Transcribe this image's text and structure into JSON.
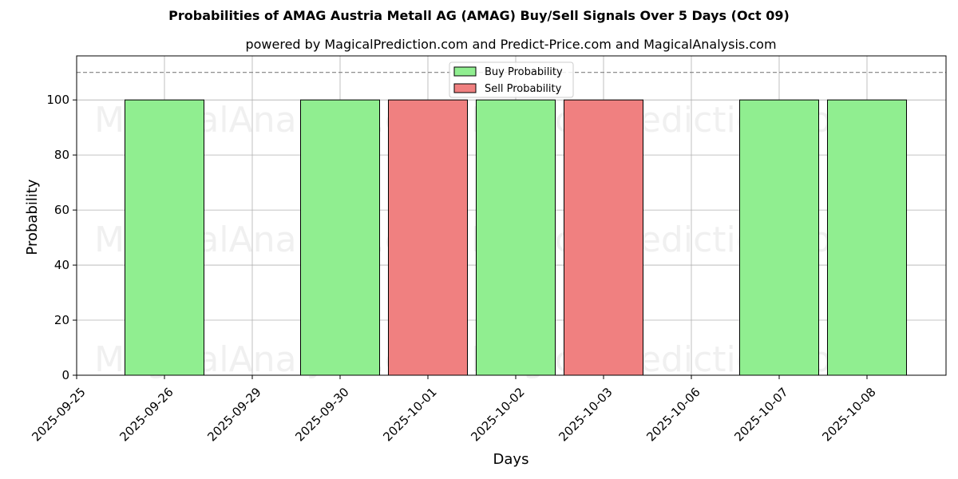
{
  "chart_data": {
    "type": "bar",
    "title": "Probabilities of AMAG Austria Metall AG (AMAG) Buy/Sell Signals Over 5 Days (Oct 09)",
    "subtitle": "powered by MagicalPrediction.com and Predict-Price.com and MagicalAnalysis.com",
    "xlabel": "Days",
    "ylabel": "Probability",
    "ylim": [
      0,
      116
    ],
    "yticks": [
      0,
      20,
      40,
      60,
      80,
      100
    ],
    "threshold_line": 110,
    "grid": true,
    "legend_position": "top-center",
    "x_ticks": [
      "2025-09-25",
      "2025-09-26",
      "2025-09-29",
      "2025-09-30",
      "2025-10-01",
      "2025-10-02",
      "2025-10-03",
      "2025-10-06",
      "2025-10-07",
      "2025-10-08"
    ],
    "series": [
      {
        "name": "Buy Probability",
        "color": "#90ee90",
        "points": [
          {
            "x": "2025-09-26",
            "y": 100
          },
          {
            "x": "2025-09-30",
            "y": 100
          },
          {
            "x": "2025-10-02",
            "y": 100
          },
          {
            "x": "2025-10-07",
            "y": 100
          },
          {
            "x": "2025-10-08",
            "y": 100
          }
        ]
      },
      {
        "name": "Sell Probability",
        "color": "#f08080",
        "points": [
          {
            "x": "2025-10-01",
            "y": 100
          },
          {
            "x": "2025-10-03",
            "y": 100
          }
        ]
      }
    ],
    "watermarks": [
      "MagicalAnalysis.com",
      "MagicalPrediction.com"
    ]
  }
}
